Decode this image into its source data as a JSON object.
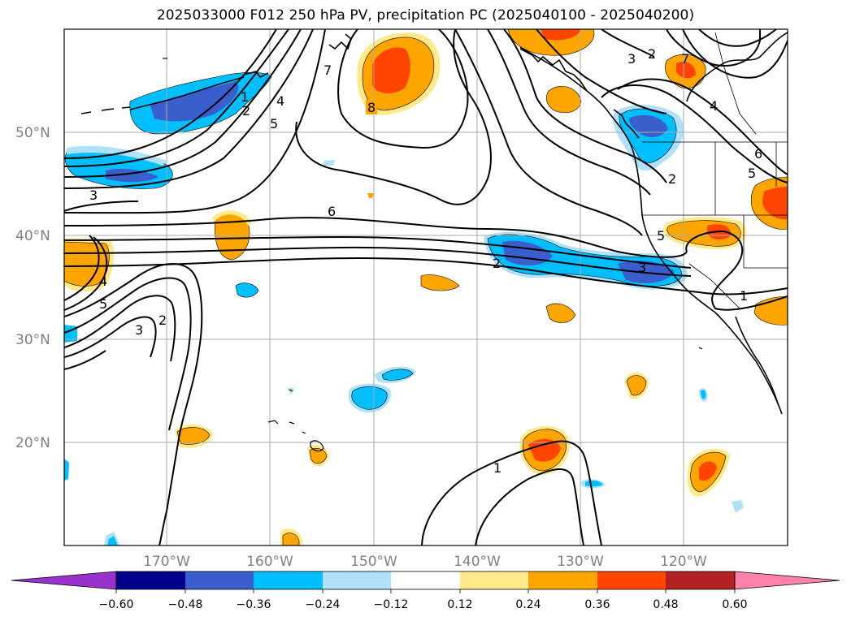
{
  "title": "2025033000 F012 250 hPa PV, precipitation PC (2025040100 - 2025040200)",
  "latitude_labels": [
    "50°N",
    "40°N",
    "30°N",
    "20°N"
  ],
  "longitude_labels": [
    "170°W",
    "160°W",
    "150°W",
    "140°W",
    "130°W",
    "120°W"
  ],
  "pv_contour_labels": [
    "1",
    "2",
    "3",
    "4",
    "5",
    "6",
    "7",
    "8"
  ],
  "colorbar": {
    "tick_labels": [
      "−0.60",
      "−0.48",
      "−0.36",
      "−0.24",
      "−0.12",
      "0.12",
      "0.24",
      "0.36",
      "0.48",
      "0.60"
    ],
    "colors": [
      "#9932cc",
      "#00008b",
      "#3a5fcd",
      "#00bfff",
      "#afe1fa",
      "#ffffff",
      "#ffe98a",
      "#ffa500",
      "#ff4500",
      "#b22222",
      "#ff82ab"
    ]
  }
}
